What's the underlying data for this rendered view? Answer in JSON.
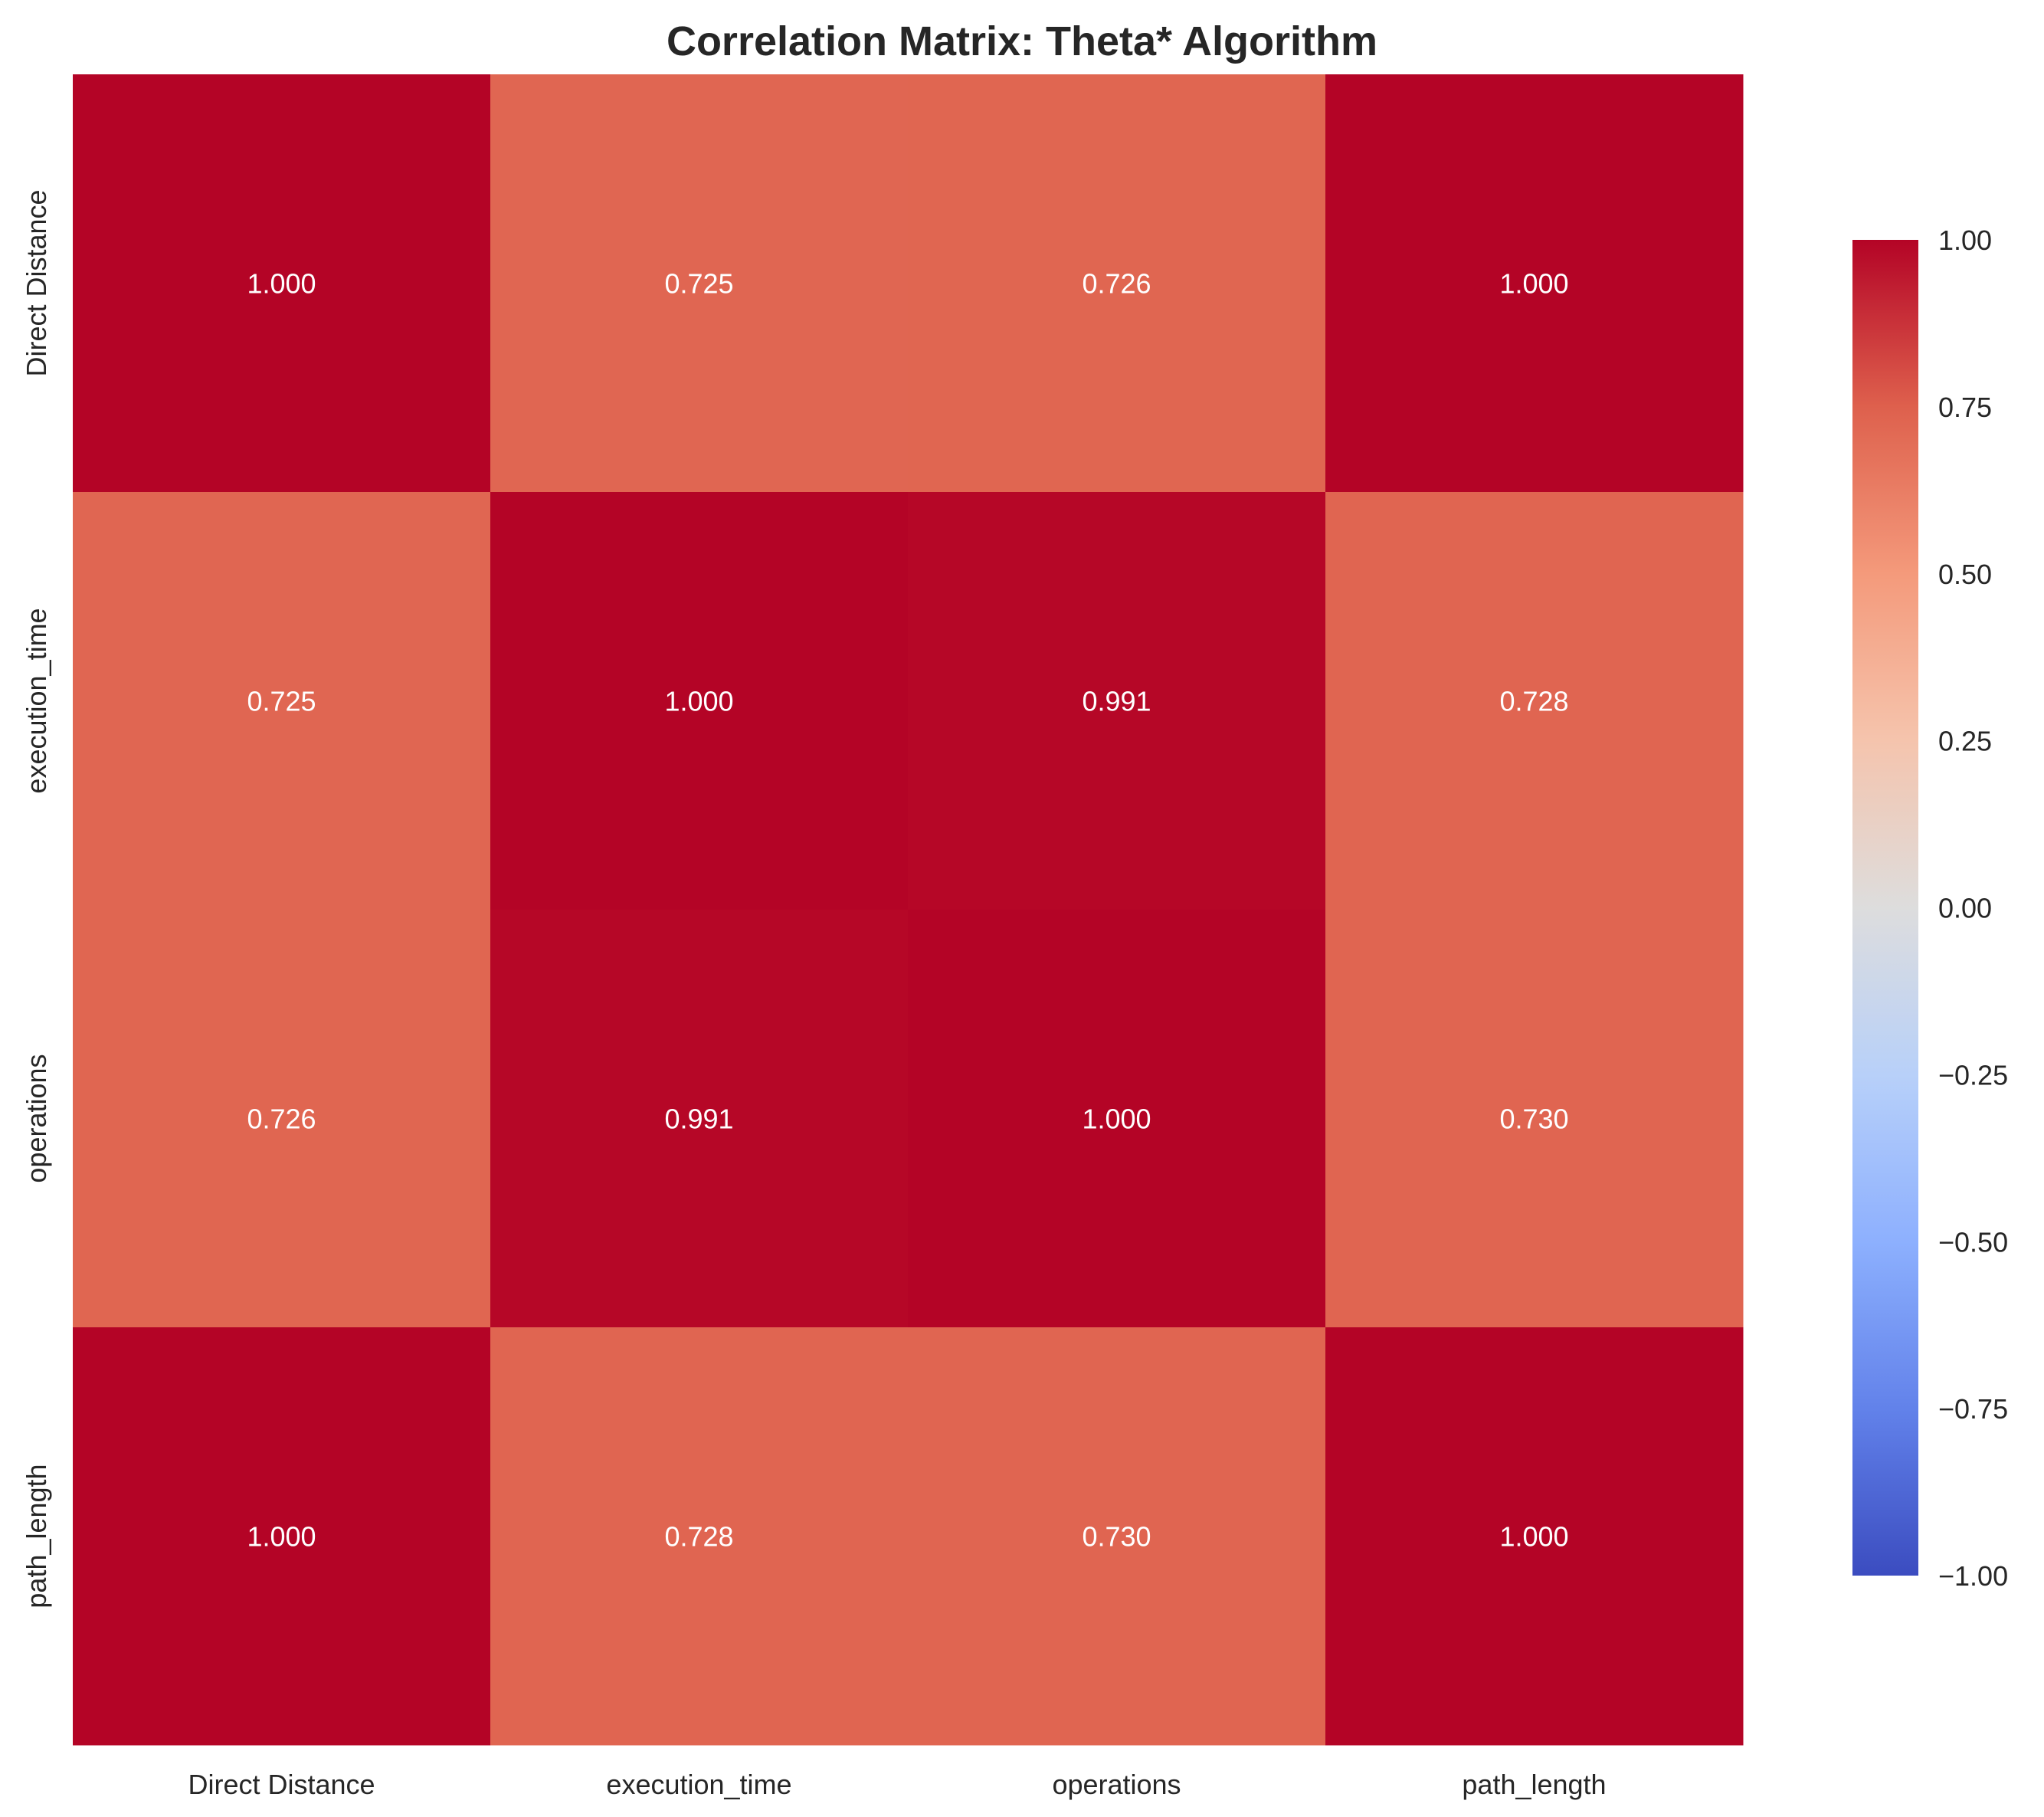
{
  "chart_data": {
    "type": "heatmap",
    "title": "Correlation Matrix: Theta* Algorithm",
    "row_labels": [
      "Direct Distance",
      "execution_time",
      "operations",
      "path_length"
    ],
    "col_labels": [
      "Direct Distance",
      "execution_time",
      "operations",
      "path_length"
    ],
    "values": [
      [
        1.0,
        0.725,
        0.726,
        1.0
      ],
      [
        0.725,
        1.0,
        0.991,
        0.728
      ],
      [
        0.726,
        0.991,
        1.0,
        0.73
      ],
      [
        1.0,
        0.728,
        0.73,
        1.0
      ]
    ],
    "cell_text": [
      [
        "1.000",
        "0.725",
        "0.726",
        "1.000"
      ],
      [
        "0.725",
        "1.000",
        "0.991",
        "0.728"
      ],
      [
        "0.726",
        "0.991",
        "1.000",
        "0.730"
      ],
      [
        "1.000",
        "0.728",
        "0.730",
        "1.000"
      ]
    ],
    "colormap": "coolwarm",
    "vmin": -1.0,
    "vmax": 1.0,
    "colorbar": {
      "ticks": [
        1.0,
        0.75,
        0.5,
        0.25,
        0.0,
        -0.25,
        -0.5,
        -0.75,
        -1.0
      ],
      "tick_labels": [
        "1.00",
        "0.75",
        "0.50",
        "0.25",
        "0.00",
        "−0.25",
        "−0.50",
        "−0.75",
        "−1.00"
      ]
    },
    "grid": false,
    "legend": "colorbar-right"
  }
}
